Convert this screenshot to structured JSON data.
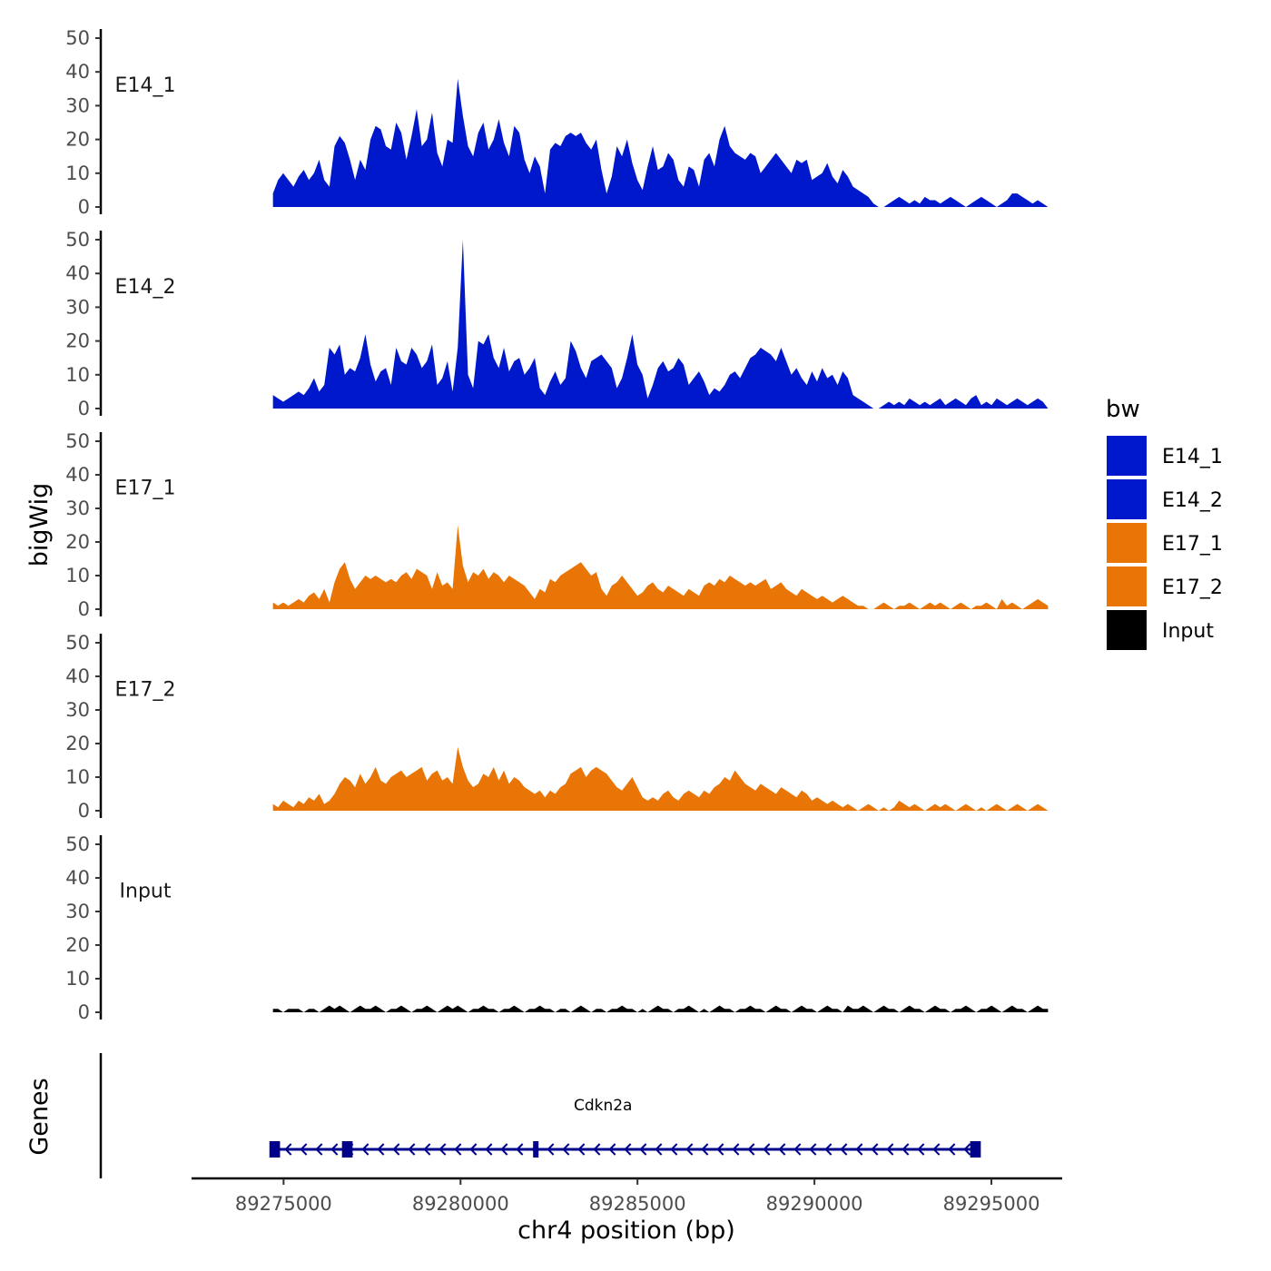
{
  "chart_data": {
    "type": "area",
    "chromosome": "chr4",
    "xlabel": "chr4 position (bp)",
    "ylabel": "bigWig",
    "gene_axis_label": "Genes",
    "xlim": [
      89272400,
      89297000
    ],
    "xticks": [
      89275000,
      89280000,
      89285000,
      89290000,
      89295000
    ],
    "data_range": [
      89274700,
      89296600
    ],
    "ylim": [
      0,
      50
    ],
    "yticks": [
      0,
      10,
      20,
      30,
      40,
      50
    ],
    "legend": {
      "title": "bw",
      "entries": [
        {
          "label": "E14_1",
          "color": "#0018cc"
        },
        {
          "label": "E14_2",
          "color": "#0018cc"
        },
        {
          "label": "E17_1",
          "color": "#e87505"
        },
        {
          "label": "E17_2",
          "color": "#e87505"
        },
        {
          "label": "Input",
          "color": "#000000"
        }
      ]
    },
    "series": [
      {
        "name": "E14_1",
        "color": "#0018cc",
        "values": [
          4,
          8,
          10,
          8,
          6,
          9,
          11,
          8,
          10,
          14,
          8,
          6,
          18,
          21,
          19,
          14,
          8,
          14,
          11,
          20,
          24,
          23,
          18,
          17,
          25,
          22,
          14,
          21,
          29,
          18,
          20,
          28,
          16,
          12,
          20,
          19,
          38,
          27,
          18,
          15,
          22,
          25,
          17,
          20,
          26,
          19,
          15,
          24,
          22,
          14,
          10,
          15,
          12,
          4,
          17,
          19,
          18,
          21,
          22,
          21,
          22,
          19,
          17,
          20,
          11,
          4,
          9,
          18,
          15,
          20,
          13,
          8,
          5,
          12,
          18,
          11,
          12,
          16,
          14,
          8,
          6,
          12,
          11,
          6,
          14,
          16,
          12,
          20,
          24,
          18,
          16,
          15,
          14,
          16,
          15,
          10,
          12,
          14,
          16,
          14,
          12,
          10,
          14,
          13,
          14,
          8,
          9,
          10,
          13,
          9,
          7,
          11,
          9,
          6,
          5,
          4,
          3,
          1,
          0,
          0,
          1,
          2,
          3,
          2,
          1,
          2,
          1,
          3,
          2,
          2,
          1,
          2,
          3,
          2,
          1,
          0,
          1,
          2,
          3,
          2,
          1,
          0,
          1,
          2,
          4,
          4,
          3,
          2,
          1,
          2,
          1,
          0
        ]
      },
      {
        "name": "E14_2",
        "color": "#0018cc",
        "values": [
          4,
          3,
          2,
          3,
          4,
          5,
          4,
          6,
          9,
          5,
          7,
          18,
          16,
          19,
          10,
          12,
          11,
          15,
          22,
          13,
          8,
          11,
          12,
          7,
          18,
          14,
          13,
          18,
          16,
          12,
          14,
          19,
          7,
          9,
          14,
          5,
          18,
          50,
          10,
          6,
          20,
          19,
          22,
          15,
          12,
          18,
          11,
          14,
          15,
          10,
          12,
          15,
          6,
          4,
          8,
          11,
          7,
          9,
          20,
          17,
          12,
          9,
          14,
          15,
          16,
          14,
          12,
          6,
          9,
          15,
          22,
          13,
          10,
          3,
          7,
          12,
          14,
          11,
          12,
          15,
          13,
          7,
          9,
          11,
          8,
          4,
          6,
          5,
          7,
          10,
          11,
          9,
          12,
          15,
          16,
          18,
          17,
          16,
          14,
          18,
          14,
          10,
          12,
          9,
          7,
          11,
          8,
          12,
          9,
          10,
          7,
          11,
          9,
          4,
          3,
          2,
          1,
          0,
          0,
          1,
          2,
          1,
          2,
          1,
          3,
          2,
          1,
          2,
          1,
          2,
          3,
          1,
          2,
          3,
          2,
          1,
          3,
          4,
          1,
          2,
          1,
          3,
          2,
          1,
          2,
          3,
          2,
          1,
          2,
          3,
          2,
          0
        ]
      },
      {
        "name": "E17_1",
        "color": "#e87505",
        "values": [
          2,
          1,
          2,
          1,
          2,
          3,
          2,
          4,
          5,
          3,
          6,
          2,
          8,
          12,
          14,
          9,
          6,
          8,
          10,
          9,
          10,
          9,
          8,
          9,
          8,
          10,
          11,
          9,
          12,
          11,
          10,
          6,
          11,
          7,
          8,
          6,
          25,
          13,
          8,
          11,
          10,
          12,
          9,
          11,
          10,
          8,
          10,
          9,
          8,
          7,
          5,
          3,
          6,
          5,
          9,
          8,
          10,
          11,
          12,
          13,
          14,
          12,
          10,
          11,
          6,
          4,
          7,
          8,
          10,
          8,
          6,
          4,
          5,
          7,
          8,
          6,
          5,
          7,
          6,
          5,
          4,
          6,
          5,
          4,
          7,
          8,
          7,
          9,
          8,
          10,
          9,
          8,
          7,
          8,
          7,
          8,
          9,
          6,
          7,
          8,
          6,
          5,
          4,
          6,
          5,
          4,
          3,
          4,
          3,
          2,
          3,
          4,
          3,
          2,
          1,
          1,
          0,
          0,
          1,
          2,
          1,
          0,
          1,
          1,
          2,
          1,
          0,
          1,
          2,
          1,
          2,
          1,
          0,
          1,
          2,
          1,
          0,
          1,
          1,
          2,
          1,
          0,
          3,
          1,
          2,
          1,
          0,
          1,
          2,
          3,
          2,
          1
        ]
      },
      {
        "name": "E17_2",
        "color": "#e87505",
        "values": [
          2,
          1,
          3,
          2,
          1,
          3,
          2,
          4,
          3,
          5,
          2,
          3,
          5,
          8,
          10,
          9,
          7,
          11,
          8,
          10,
          13,
          9,
          8,
          10,
          11,
          12,
          10,
          11,
          12,
          13,
          9,
          11,
          12,
          9,
          10,
          8,
          19,
          13,
          9,
          7,
          8,
          11,
          10,
          13,
          9,
          12,
          8,
          10,
          9,
          7,
          6,
          5,
          6,
          4,
          6,
          5,
          7,
          8,
          11,
          12,
          13,
          10,
          12,
          13,
          12,
          11,
          9,
          7,
          6,
          8,
          10,
          7,
          4,
          3,
          4,
          3,
          5,
          6,
          4,
          3,
          5,
          6,
          5,
          4,
          6,
          5,
          7,
          8,
          10,
          9,
          12,
          10,
          8,
          7,
          6,
          8,
          7,
          6,
          5,
          7,
          6,
          5,
          4,
          6,
          5,
          3,
          4,
          3,
          2,
          3,
          2,
          1,
          2,
          1,
          0,
          1,
          2,
          1,
          0,
          1,
          0,
          1,
          3,
          2,
          1,
          2,
          1,
          0,
          1,
          2,
          1,
          2,
          1,
          0,
          1,
          2,
          1,
          0,
          1,
          0,
          1,
          2,
          1,
          0,
          1,
          2,
          1,
          0,
          1,
          2,
          1,
          0
        ]
      },
      {
        "name": "Input",
        "color": "#000000",
        "values": [
          1,
          1,
          0,
          1,
          1,
          1,
          0,
          1,
          1,
          0,
          1,
          2,
          1,
          2,
          1,
          0,
          1,
          2,
          1,
          1,
          2,
          1,
          0,
          1,
          1,
          2,
          1,
          0,
          1,
          1,
          2,
          1,
          0,
          1,
          2,
          1,
          2,
          1,
          0,
          1,
          1,
          2,
          1,
          1,
          0,
          1,
          1,
          2,
          1,
          0,
          1,
          1,
          2,
          1,
          1,
          0,
          1,
          1,
          0,
          1,
          2,
          1,
          0,
          1,
          1,
          0,
          1,
          1,
          2,
          1,
          1,
          0,
          1,
          0,
          1,
          2,
          1,
          1,
          0,
          1,
          1,
          2,
          1,
          0,
          1,
          0,
          1,
          2,
          1,
          1,
          0,
          1,
          1,
          2,
          1,
          1,
          0,
          1,
          2,
          1,
          1,
          0,
          1,
          2,
          1,
          1,
          0,
          1,
          2,
          1,
          1,
          0,
          2,
          1,
          1,
          2,
          1,
          0,
          1,
          2,
          1,
          1,
          0,
          1,
          2,
          1,
          1,
          0,
          1,
          2,
          1,
          1,
          0,
          1,
          1,
          2,
          1,
          0,
          1,
          1,
          2,
          1,
          0,
          1,
          2,
          1,
          1,
          0,
          1,
          2,
          1,
          1
        ]
      }
    ],
    "genes": [
      {
        "name": "Cdkn2a",
        "start": 89274700,
        "end": 89294600,
        "strand": "-",
        "color": "#00008b",
        "exons": [
          [
            89274600,
            89274900
          ],
          [
            89276650,
            89276950
          ],
          [
            89282050,
            89282200
          ],
          [
            89294400,
            89294700
          ]
        ]
      }
    ]
  }
}
